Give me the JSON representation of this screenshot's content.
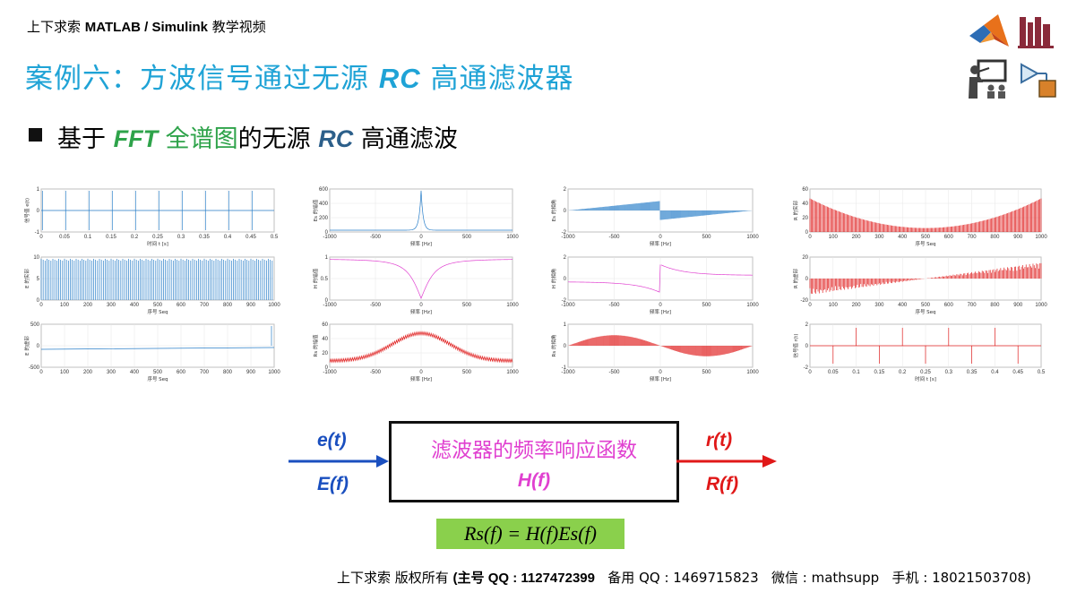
{
  "header": {
    "prefix": "上下求索 ",
    "brand": "MATLAB / Simulink",
    "suffix": " 教学视频"
  },
  "title": {
    "part1": "案例六：方波信号通过无源 ",
    "rc": "RC",
    "part2": " 高通滤波器"
  },
  "subtitle": {
    "part1": "基于 ",
    "fft": "FFT",
    "green": " 全谱图",
    "part2": "的无源 ",
    "rc": "RC",
    "part3": " 高通滤波"
  },
  "icons": [
    "matlab-logo-icon",
    "books-icon",
    "teacher-icon",
    "simulink-block-icon"
  ],
  "colors": {
    "blue_plot": "#2a7fc9",
    "magenta_plot": "#e040d0",
    "red_plot": "#e02020",
    "title": "#1fa3d6",
    "accent_green": "#2ea34a"
  },
  "plots": [
    {
      "ylabel": "信号值 e(t)",
      "xlabel": "时间 t [s]",
      "xticks": [
        "0",
        "0.05",
        "0.1",
        "0.15",
        "0.2",
        "0.25",
        "0.3",
        "0.35",
        "0.4",
        "0.45",
        "0.5"
      ],
      "yticks": [
        "1",
        "0",
        "-1"
      ]
    },
    {
      "ylabel": "E 的实部",
      "xlabel": "序号 Seq",
      "xticks": [
        "0",
        "100",
        "200",
        "300",
        "400",
        "500",
        "600",
        "700",
        "800",
        "900",
        "1000"
      ],
      "yticks": [
        "10",
        "5",
        "0"
      ]
    },
    {
      "ylabel": "E 的虚部",
      "xlabel": "序号 Seq",
      "xticks": [
        "0",
        "100",
        "200",
        "300",
        "400",
        "500",
        "600",
        "700",
        "800",
        "900",
        "1000"
      ],
      "yticks": [
        "500",
        "0",
        "-500"
      ]
    },
    {
      "ylabel": "Es 的幅值",
      "xlabel": "频率 [Hz]",
      "xticks": [
        "-1000",
        "-500",
        "0",
        "500",
        "1000"
      ],
      "yticks": [
        "600",
        "400",
        "200",
        "0"
      ]
    },
    {
      "ylabel": "H 的幅值",
      "xlabel": "频率 [Hz]",
      "xticks": [
        "-1000",
        "-500",
        "0",
        "500",
        "1000"
      ],
      "yticks": [
        "1",
        "0.5",
        "0"
      ]
    },
    {
      "ylabel": "Rs 的幅值",
      "xlabel": "频率 [Hz]",
      "xticks": [
        "-1000",
        "-500",
        "0",
        "500",
        "1000"
      ],
      "yticks": [
        "60",
        "40",
        "20",
        "0"
      ]
    },
    {
      "ylabel": "Es 的相角",
      "xlabel": "频率 [Hz]",
      "xticks": [
        "-1000",
        "-500",
        "0",
        "500",
        "1000"
      ],
      "yticks": [
        "2",
        "0",
        "-2"
      ]
    },
    {
      "ylabel": "H 的相角",
      "xlabel": "频率 [Hz]",
      "xticks": [
        "-1000",
        "-500",
        "0",
        "500",
        "1000"
      ],
      "yticks": [
        "2",
        "0",
        "-2"
      ]
    },
    {
      "ylabel": "Rs 的相角",
      "xlabel": "频率 [Hz]",
      "xticks": [
        "-1000",
        "-500",
        "0",
        "500",
        "1000"
      ],
      "yticks": [
        "1",
        "0",
        "-1"
      ]
    },
    {
      "ylabel": "R 的实部",
      "xlabel": "序号 Seq",
      "xticks": [
        "0",
        "100",
        "200",
        "300",
        "400",
        "500",
        "600",
        "700",
        "800",
        "900",
        "1000"
      ],
      "yticks": [
        "60",
        "40",
        "20",
        "0"
      ]
    },
    {
      "ylabel": "R 的虚部",
      "xlabel": "序号 Seq",
      "xticks": [
        "0",
        "100",
        "200",
        "300",
        "400",
        "500",
        "600",
        "700",
        "800",
        "900",
        "1000"
      ],
      "yticks": [
        "20",
        "0",
        "-20"
      ]
    },
    {
      "ylabel": "信号值 r(t)",
      "xlabel": "时间 t [s]",
      "xticks": [
        "0",
        "0.05",
        "0.1",
        "0.15",
        "0.2",
        "0.25",
        "0.3",
        "0.35",
        "0.4",
        "0.45",
        "0.5"
      ],
      "yticks": [
        "2",
        "0",
        "-2"
      ]
    }
  ],
  "diagram": {
    "input_time": "e(t)",
    "input_freq": "E(f)",
    "box_title": "滤波器的频率响应函数",
    "box_hf": "H(f)",
    "output_time": "r(t)",
    "output_freq": "R(f)",
    "formula": "Rs(f) = H(f)Es(f)"
  },
  "footer": {
    "owner": "上下求索  版权所有 ",
    "main_qq": "(主号 QQ : 1127472399",
    "backup_qq": "备用 QQ : 1469715823",
    "wechat": "微信 : mathsupp",
    "phone": "手机 : 18021503708)"
  }
}
